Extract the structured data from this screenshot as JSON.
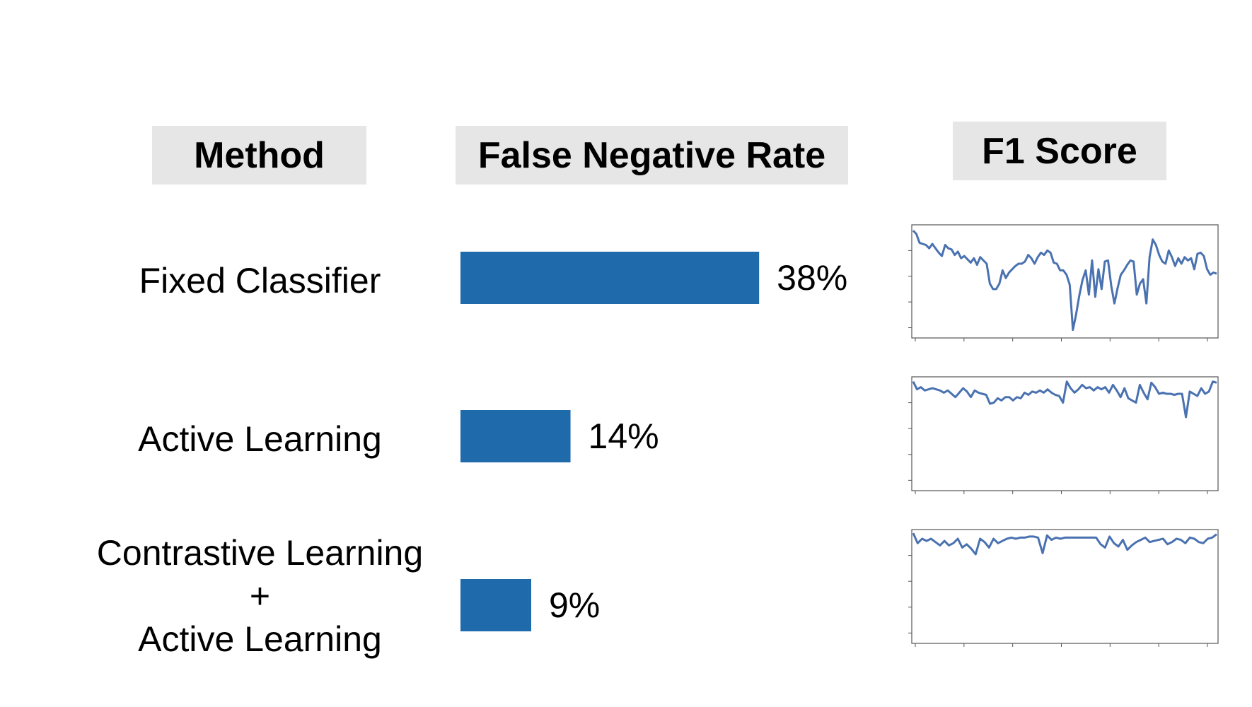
{
  "headers": {
    "method": "Method",
    "false_negative_rate": "False Negative Rate",
    "f1_score": "F1 Score"
  },
  "methods": [
    {
      "lines": [
        "Fixed Classifier"
      ]
    },
    {
      "lines": [
        "Active Learning"
      ]
    },
    {
      "lines": [
        "Contrastive Learning",
        "+",
        "Active Learning"
      ]
    }
  ],
  "colors": {
    "bar": "#1f6aab",
    "line": "#4a72b0",
    "header_bg": "#e6e6e6"
  },
  "chart_data": [
    {
      "type": "bar",
      "orientation": "horizontal",
      "categories": [
        "Fixed Classifier",
        "Active Learning",
        "Contrastive Learning + Active Learning"
      ],
      "values": [
        38,
        14,
        9
      ],
      "value_labels": [
        "38%",
        "14%",
        "9%"
      ],
      "title": "False Negative Rate",
      "unit": "%"
    },
    {
      "type": "line",
      "title": "F1 Score",
      "ylim": [
        0,
        1
      ],
      "panels": [
        {
          "category": "Fixed Classifier",
          "values": [
            0.96,
            0.93,
            0.85,
            0.84,
            0.83,
            0.8,
            0.84,
            0.8,
            0.76,
            0.73,
            0.83,
            0.8,
            0.79,
            0.74,
            0.77,
            0.71,
            0.73,
            0.7,
            0.67,
            0.71,
            0.65,
            0.72,
            0.69,
            0.66,
            0.48,
            0.43,
            0.43,
            0.48,
            0.6,
            0.53,
            0.58,
            0.61,
            0.64,
            0.66,
            0.66,
            0.68,
            0.74,
            0.71,
            0.66,
            0.72,
            0.76,
            0.74,
            0.78,
            0.76,
            0.67,
            0.66,
            0.6,
            0.6,
            0.56,
            0.47,
            0.06,
            0.2,
            0.37,
            0.51,
            0.6,
            0.38,
            0.69,
            0.36,
            0.61,
            0.43,
            0.68,
            0.69,
            0.46,
            0.3,
            0.44,
            0.56,
            0.6,
            0.65,
            0.69,
            0.68,
            0.38,
            0.48,
            0.52,
            0.3,
            0.72,
            0.88,
            0.83,
            0.74,
            0.68,
            0.66,
            0.78,
            0.72,
            0.64,
            0.71,
            0.66,
            0.72,
            0.69,
            0.71,
            0.61,
            0.75,
            0.76,
            0.73,
            0.61,
            0.56,
            0.58,
            0.57
          ]
        },
        {
          "category": "Active Learning",
          "values": [
            0.97,
            0.9,
            0.92,
            0.89,
            0.9,
            0.91,
            0.9,
            0.89,
            0.87,
            0.89,
            0.86,
            0.83,
            0.87,
            0.91,
            0.88,
            0.83,
            0.89,
            0.87,
            0.86,
            0.85,
            0.77,
            0.78,
            0.82,
            0.8,
            0.83,
            0.83,
            0.8,
            0.83,
            0.82,
            0.87,
            0.85,
            0.88,
            0.87,
            0.89,
            0.87,
            0.9,
            0.87,
            0.85,
            0.84,
            0.78,
            0.97,
            0.91,
            0.87,
            0.9,
            0.94,
            0.91,
            0.92,
            0.89,
            0.92,
            0.9,
            0.92,
            0.87,
            0.94,
            0.89,
            0.83,
            0.91,
            0.82,
            0.8,
            0.78,
            0.94,
            0.87,
            0.81,
            0.96,
            0.92,
            0.86,
            0.87,
            0.86,
            0.86,
            0.85,
            0.86,
            0.86,
            0.65,
            0.88,
            0.86,
            0.84,
            0.91,
            0.86,
            0.88,
            0.97,
            0.96
          ]
        },
        {
          "category": "Contrastive Learning + Active Learning",
          "values": [
            0.98,
            0.89,
            0.93,
            0.91,
            0.93,
            0.9,
            0.87,
            0.91,
            0.87,
            0.89,
            0.93,
            0.85,
            0.88,
            0.84,
            0.79,
            0.93,
            0.9,
            0.85,
            0.93,
            0.89,
            0.91,
            0.93,
            0.94,
            0.93,
            0.94,
            0.94,
            0.95,
            0.95,
            0.94,
            0.8,
            0.96,
            0.92,
            0.94,
            0.93,
            0.94,
            0.94,
            0.94,
            0.94,
            0.94,
            0.94,
            0.94,
            0.94,
            0.88,
            0.85,
            0.95,
            0.89,
            0.86,
            0.92,
            0.83,
            0.87,
            0.9,
            0.92,
            0.94,
            0.9,
            0.91,
            0.92,
            0.93,
            0.88,
            0.9,
            0.93,
            0.92,
            0.89,
            0.94,
            0.93,
            0.9,
            0.89,
            0.93,
            0.94,
            0.97
          ]
        }
      ]
    }
  ]
}
